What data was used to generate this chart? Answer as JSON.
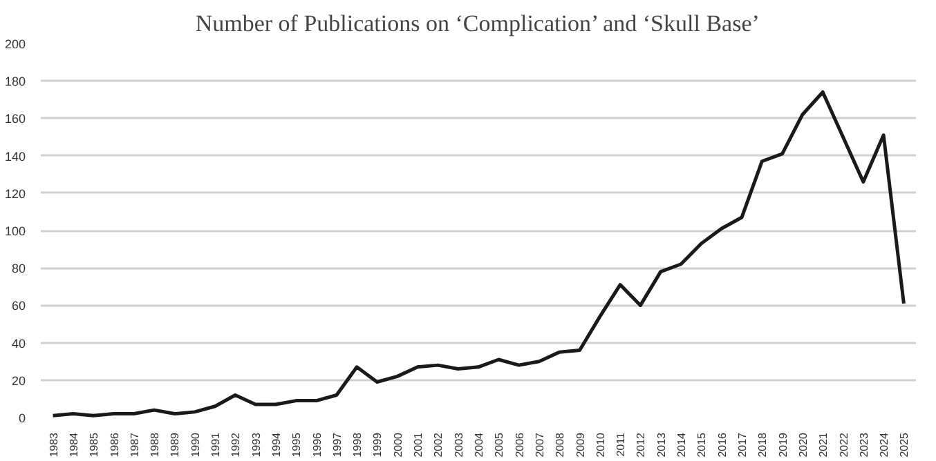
{
  "chart_data": {
    "type": "line",
    "title": "Number of Publications on ‘Complication’ and ‘Skull Base’",
    "categories": [
      "1983",
      "1984",
      "1985",
      "1986",
      "1987",
      "1988",
      "1989",
      "1990",
      "1991",
      "1992",
      "1993",
      "1994",
      "1995",
      "1996",
      "1997",
      "1998",
      "1999",
      "2000",
      "2001",
      "2002",
      "2003",
      "2004",
      "2005",
      "2006",
      "2007",
      "2008",
      "2009",
      "2010",
      "2011",
      "2012",
      "2013",
      "2014",
      "2015",
      "2016",
      "2017",
      "2018",
      "2019",
      "2020",
      "2021",
      "2022",
      "2023",
      "2024",
      "2025"
    ],
    "series": [
      {
        "color": "#1a1a1a",
        "values": [
          1,
          2,
          1,
          2,
          2,
          4,
          2,
          3,
          6,
          12,
          7,
          7,
          9,
          9,
          12,
          27,
          19,
          22,
          27,
          28,
          26,
          27,
          31,
          28,
          30,
          35,
          36,
          54,
          71,
          60,
          78,
          82,
          93,
          101,
          107,
          137,
          141,
          162,
          174,
          150,
          126,
          151,
          61
        ]
      }
    ],
    "ylim": [
      0,
      200
    ],
    "yticks": [
      0,
      20,
      40,
      60,
      80,
      100,
      120,
      140,
      160,
      180,
      200
    ],
    "grid": "y",
    "marker": "none",
    "line_style": "solid"
  }
}
